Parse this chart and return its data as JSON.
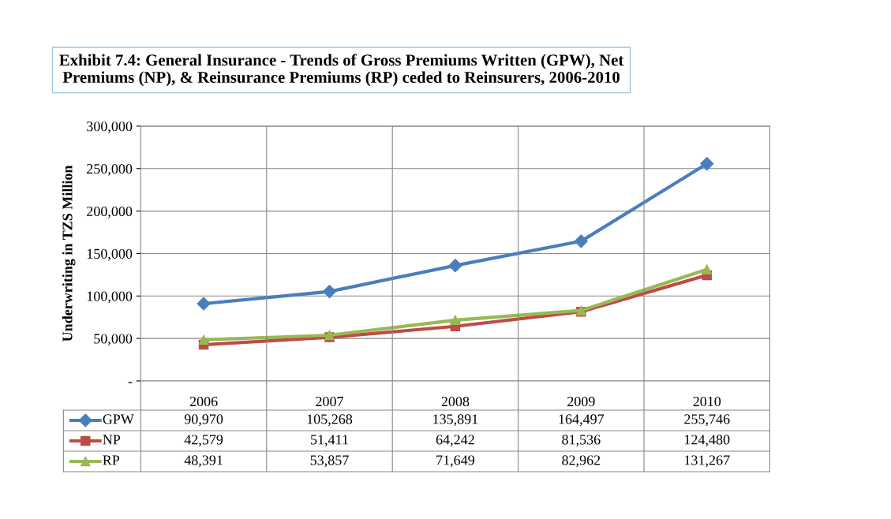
{
  "chart_data": {
    "type": "line",
    "title": "Exhibit 7.4: General Insurance - Trends of Gross Premiums Written (GPW), Net Premiums (NP), & Reinsurance Premiums (RP) ceded to Reinsurers, 2006-2010",
    "ylabel": "Underwriting in TZS Million",
    "categories": [
      "2006",
      "2007",
      "2008",
      "2009",
      "2010"
    ],
    "series": [
      {
        "name": "GPW",
        "color": "#4a7ebb",
        "marker": "diamond",
        "values": [
          90970,
          105268,
          135891,
          164497,
          255746
        ],
        "value_labels": [
          "90,970",
          "105,268",
          "135,891",
          "164,497",
          "255,746"
        ]
      },
      {
        "name": "NP",
        "color": "#be4b48",
        "marker": "square",
        "values": [
          42579,
          51411,
          64242,
          81536,
          124480
        ],
        "value_labels": [
          "42,579",
          "51,411",
          "64,242",
          "81,536",
          "124,480"
        ]
      },
      {
        "name": "RP",
        "color": "#98b954",
        "marker": "triangle",
        "values": [
          48391,
          53857,
          71649,
          82962,
          131267
        ],
        "value_labels": [
          "48,391",
          "53,857",
          "71,649",
          "82,962",
          "131,267"
        ]
      }
    ],
    "ylim": [
      0,
      300000
    ],
    "yticks": [
      {
        "value": 0,
        "label": "-"
      },
      {
        "value": 50000,
        "label": "50,000"
      },
      {
        "value": 100000,
        "label": "100,000"
      },
      {
        "value": 150000,
        "label": "150,000"
      },
      {
        "value": 200000,
        "label": "200,000"
      },
      {
        "value": 250000,
        "label": "250,000"
      },
      {
        "value": 300000,
        "label": "300,000"
      }
    ],
    "grid": true,
    "legend": "bottom"
  }
}
